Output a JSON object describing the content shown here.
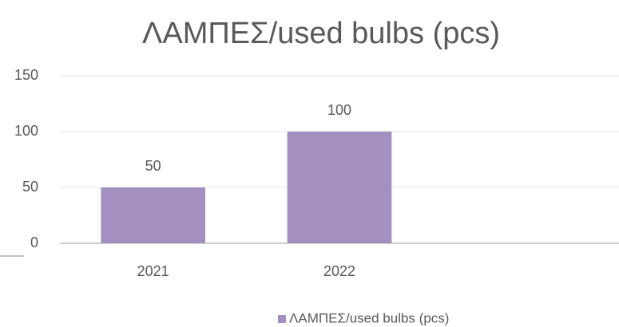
{
  "chart_data": {
    "type": "bar",
    "title": "ΛΑΜΠΕΣ/used bulbs (pcs)",
    "categories": [
      "2021",
      "2022",
      null
    ],
    "series": [
      {
        "name": "ΛΑΜΠΕΣ/used bulbs (pcs)",
        "color": "#a390c0",
        "values": [
          50,
          100,
          null
        ]
      }
    ],
    "ylim": [
      0,
      150
    ],
    "yticks": [
      0,
      50,
      100,
      150
    ],
    "grid": true,
    "legend": "bottom"
  }
}
